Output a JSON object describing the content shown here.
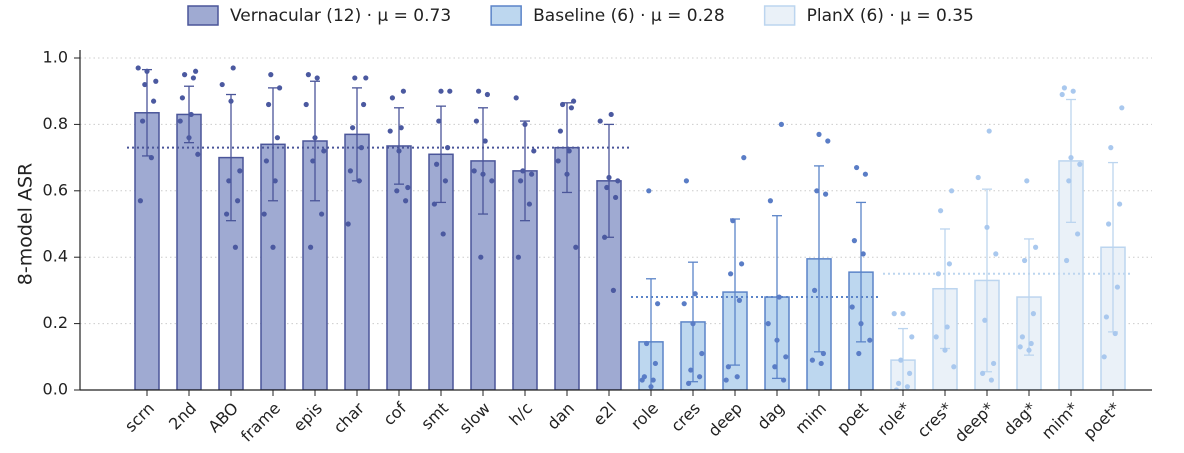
{
  "chart_data": {
    "type": "bar",
    "y_label": "8-model ASR",
    "categories": [
      "scrn",
      "2nd",
      "ABO",
      "frame",
      "epis",
      "char",
      "cof",
      "smt",
      "slow",
      "h/c",
      "dan",
      "e2l",
      "role",
      "cres",
      "deep",
      "dag",
      "mim",
      "poet",
      "role*",
      "cres*",
      "deep*",
      "dag*",
      "mim*",
      "poet*"
    ],
    "series": [
      {
        "name": "Vernacular (12)  ·  μ = 0.73",
        "color": "#9faad2",
        "edge": "#4a5599",
        "dot": "#4b59a0",
        "mean": 0.73,
        "values": [
          0.835,
          0.83,
          0.7,
          0.74,
          0.75,
          0.77,
          0.735,
          0.71,
          0.69,
          0.66,
          0.73,
          0.63,
          null,
          null,
          null,
          null,
          null,
          null,
          null,
          null,
          null,
          null,
          null,
          null
        ],
        "errors": [
          0.13,
          0.085,
          0.19,
          0.17,
          0.18,
          0.14,
          0.115,
          0.145,
          0.16,
          0.15,
          0.135,
          0.17,
          null,
          null,
          null,
          null,
          null,
          null,
          null,
          null,
          null,
          null,
          null,
          null
        ]
      },
      {
        "name": "Baseline (6)  ·  μ = 0.28",
        "color": "#bdd7ef",
        "edge": "#5b84c8",
        "dot": "#5a7dc6",
        "mean": 0.28,
        "values": [
          null,
          null,
          null,
          null,
          null,
          null,
          null,
          null,
          null,
          null,
          null,
          null,
          0.145,
          0.205,
          0.295,
          0.28,
          0.395,
          0.355,
          null,
          null,
          null,
          null,
          null,
          null
        ],
        "errors": [
          null,
          null,
          null,
          null,
          null,
          null,
          null,
          null,
          null,
          null,
          null,
          null,
          0.19,
          0.18,
          0.22,
          0.245,
          0.28,
          0.21,
          null,
          null,
          null,
          null,
          null,
          null
        ]
      },
      {
        "name": "PlanX (6)  ·  μ = 0.35",
        "color": "#eaf1f8",
        "edge": "#bcd5ef",
        "dot": "#a9c8ee",
        "mean": 0.35,
        "values": [
          null,
          null,
          null,
          null,
          null,
          null,
          null,
          null,
          null,
          null,
          null,
          null,
          null,
          null,
          null,
          null,
          null,
          null,
          0.09,
          0.305,
          0.33,
          0.28,
          0.69,
          0.43
        ],
        "errors": [
          null,
          null,
          null,
          null,
          null,
          null,
          null,
          null,
          null,
          null,
          null,
          null,
          null,
          null,
          null,
          null,
          null,
          null,
          0.095,
          0.18,
          0.275,
          0.175,
          0.185,
          0.255
        ]
      }
    ],
    "points": [
      [
        0.97,
        0.96,
        0.93,
        0.92,
        0.87,
        0.81,
        0.7,
        0.57
      ],
      [
        0.96,
        0.95,
        0.94,
        0.88,
        0.83,
        0.81,
        0.76,
        0.71
      ],
      [
        0.97,
        0.92,
        0.87,
        0.66,
        0.63,
        0.57,
        0.53,
        0.43
      ],
      [
        0.95,
        0.91,
        0.86,
        0.76,
        0.69,
        0.63,
        0.53,
        0.43
      ],
      [
        0.95,
        0.94,
        0.86,
        0.76,
        0.72,
        0.69,
        0.53,
        0.43
      ],
      [
        0.94,
        0.94,
        0.86,
        0.79,
        0.73,
        0.66,
        0.63,
        0.5
      ],
      [
        0.9,
        0.88,
        0.79,
        0.78,
        0.72,
        0.61,
        0.6,
        0.57
      ],
      [
        0.9,
        0.9,
        0.81,
        0.73,
        0.68,
        0.63,
        0.56,
        0.47
      ],
      [
        0.9,
        0.89,
        0.81,
        0.75,
        0.66,
        0.65,
        0.63,
        0.4
      ],
      [
        0.88,
        0.8,
        0.72,
        0.66,
        0.65,
        0.63,
        0.56,
        0.4
      ],
      [
        0.87,
        0.86,
        0.85,
        0.78,
        0.72,
        0.69,
        0.65,
        0.43
      ],
      [
        0.83,
        0.81,
        0.64,
        0.63,
        0.61,
        0.58,
        0.46,
        0.3
      ],
      [
        0.6,
        0.26,
        0.14,
        0.08,
        0.04,
        0.03,
        0.03,
        0.01
      ],
      [
        0.63,
        0.29,
        0.26,
        0.2,
        0.11,
        0.06,
        0.04,
        0.02
      ],
      [
        0.7,
        0.51,
        0.38,
        0.35,
        0.27,
        0.07,
        0.04,
        0.03
      ],
      [
        0.8,
        0.57,
        0.28,
        0.2,
        0.15,
        0.1,
        0.07,
        0.03
      ],
      [
        0.77,
        0.75,
        0.6,
        0.59,
        0.3,
        0.11,
        0.09,
        0.08
      ],
      [
        0.67,
        0.65,
        0.45,
        0.41,
        0.25,
        0.2,
        0.15,
        0.11
      ],
      [
        0.23,
        0.23,
        0.16,
        0.09,
        0.05,
        0.02,
        0.01,
        0.0
      ],
      [
        0.6,
        0.54,
        0.38,
        0.35,
        0.19,
        0.16,
        0.12,
        0.07
      ],
      [
        0.78,
        0.64,
        0.49,
        0.41,
        0.21,
        0.08,
        0.05,
        0.03
      ],
      [
        0.63,
        0.43,
        0.39,
        0.23,
        0.16,
        0.14,
        0.13,
        0.12
      ],
      [
        0.91,
        0.9,
        0.89,
        0.7,
        0.68,
        0.63,
        0.47,
        0.39
      ],
      [
        0.85,
        0.73,
        0.56,
        0.5,
        0.31,
        0.22,
        0.17,
        0.1
      ]
    ],
    "ylim": [
      0,
      1.02
    ],
    "yticks": [
      {
        "value": 0,
        "label": "0.0"
      },
      0.2,
      0.4,
      0.6,
      0.8,
      {
        "value": 1,
        "label": "1.0"
      }
    ],
    "grid": true,
    "legend": "top"
  }
}
